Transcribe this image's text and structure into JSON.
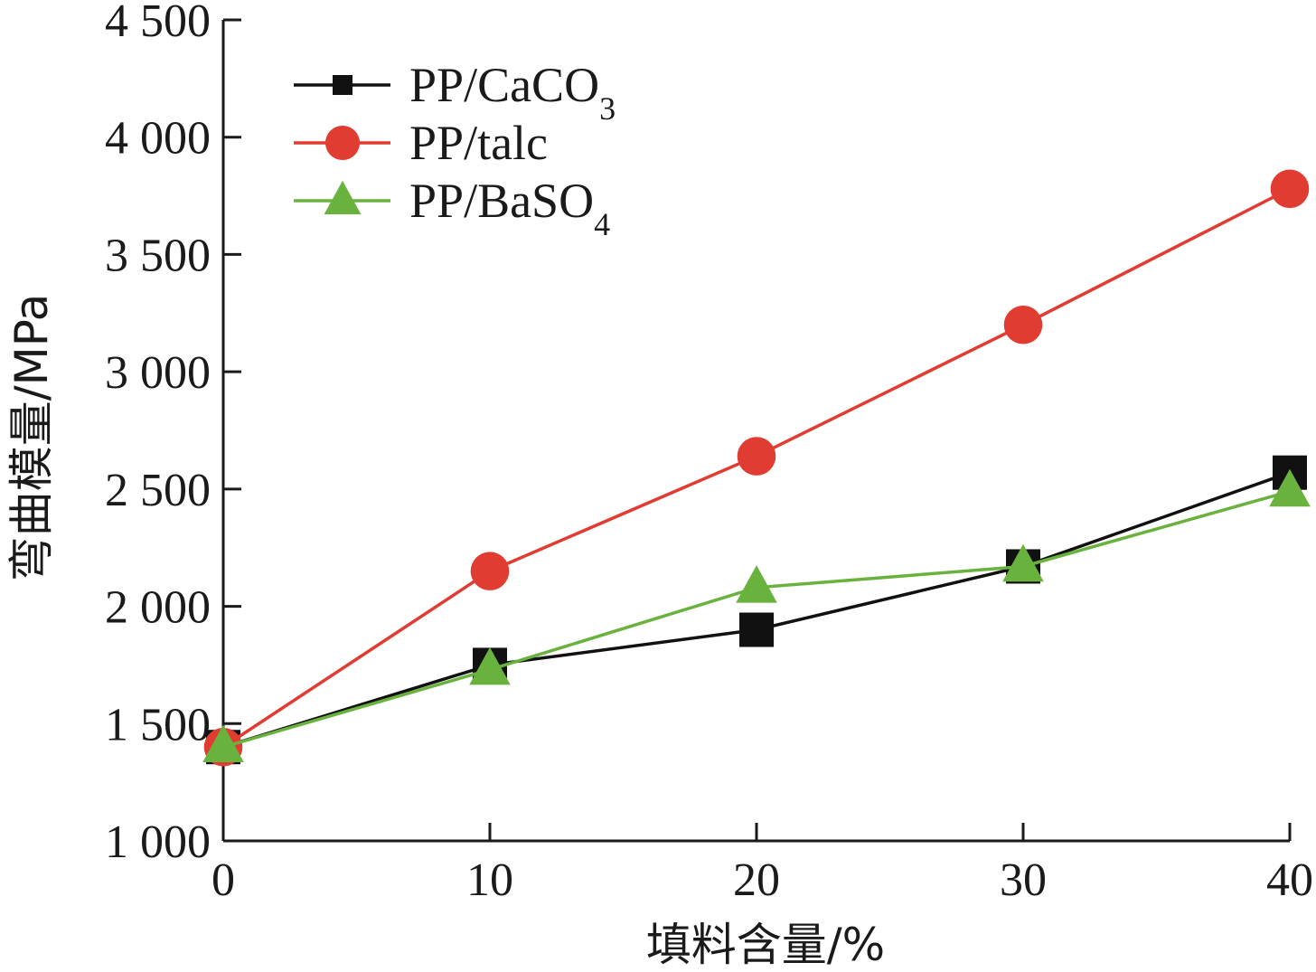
{
  "chart_data": {
    "type": "line",
    "title": "",
    "xlabel": "填料含量/%",
    "ylabel": "弯曲模量/MPa",
    "x": [
      0,
      10,
      20,
      30,
      40
    ],
    "x_tick_labels": [
      "0",
      "10",
      "20",
      "30",
      "40"
    ],
    "xlim": [
      0,
      40
    ],
    "ylim": [
      1000,
      4500
    ],
    "y_ticks": [
      1000,
      1500,
      2000,
      2500,
      3000,
      3500,
      4000,
      4500
    ],
    "y_tick_labels": [
      "1 000",
      "1 500",
      "2 000",
      "2 500",
      "3 000",
      "3 500",
      "4 000",
      "4 500"
    ],
    "grid": false,
    "legend_position": "top-left",
    "series": [
      {
        "name": "PP/CaCO3",
        "legend_main": "PP/CaCO",
        "legend_sub": "3",
        "color": "#111111",
        "marker": "square",
        "values": [
          1400,
          1750,
          1900,
          2170,
          2570
        ]
      },
      {
        "name": "PP/talc",
        "legend_main": "PP/talc",
        "legend_sub": "",
        "color": "#e03c31",
        "marker": "circle",
        "values": [
          1400,
          2150,
          2640,
          3200,
          3780
        ]
      },
      {
        "name": "PP/BaSO4",
        "legend_main": "PP/BaSO",
        "legend_sub": "4",
        "color": "#6ab23e",
        "marker": "triangle",
        "values": [
          1400,
          1730,
          2080,
          2170,
          2490
        ]
      }
    ]
  }
}
